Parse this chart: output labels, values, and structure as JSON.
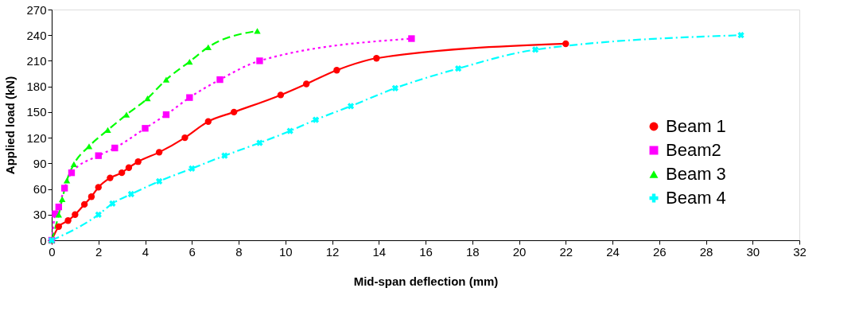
{
  "chart_data": {
    "type": "line",
    "xlabel": "Mid-span deflection (mm)",
    "ylabel": "Applied load (kN)",
    "xlim": [
      0,
      32
    ],
    "xticks": [
      0,
      2,
      4,
      6,
      8,
      10,
      12,
      14,
      16,
      18,
      20,
      22,
      24,
      26,
      28,
      30,
      32
    ],
    "ylim": [
      0,
      270
    ],
    "yticks": [
      0,
      30,
      60,
      90,
      120,
      150,
      180,
      210,
      240,
      270
    ],
    "grid": false,
    "legend": "right",
    "series": [
      {
        "name": "Beam 1",
        "color": "#ff0000",
        "marker": "circle",
        "line_style": "solid",
        "x": [
          0,
          0.3,
          0.7,
          1.0,
          1.4,
          1.7,
          2.0,
          2.5,
          3.0,
          3.3,
          3.7,
          4.6,
          5.7,
          6.7,
          7.8,
          9.8,
          10.9,
          12.2,
          13.9,
          22.0
        ],
        "values": [
          0,
          16,
          23,
          30,
          42,
          51,
          62,
          73,
          79,
          85,
          92,
          103,
          120,
          139,
          150,
          170,
          183,
          199,
          213,
          230
        ]
      },
      {
        "name": "Beam2",
        "color": "#ff00ff",
        "marker": "square",
        "line_style": "dotted",
        "x": [
          0,
          0.15,
          0.3,
          0.55,
          0.85,
          2.0,
          2.7,
          4.0,
          4.9,
          5.9,
          7.2,
          8.9,
          15.4
        ],
        "values": [
          0,
          31,
          39,
          61,
          79,
          99,
          108,
          131,
          147,
          167,
          188,
          210,
          236
        ]
      },
      {
        "name": "Beam 3",
        "color": "#00ff00",
        "marker": "triangle",
        "line_style": "dashed",
        "x": [
          0,
          0.3,
          0.45,
          0.65,
          0.95,
          1.6,
          2.4,
          3.2,
          4.1,
          4.9,
          5.9,
          6.7,
          8.8
        ],
        "values": [
          0,
          30,
          48,
          70,
          89,
          110,
          129,
          147,
          166,
          188,
          209,
          226,
          245
        ]
      },
      {
        "name": "Beam 4",
        "color": "#00ffff",
        "marker": "cross",
        "line_style": "dashdot",
        "x": [
          0,
          2.0,
          2.6,
          3.4,
          4.6,
          6.0,
          7.4,
          8.9,
          10.2,
          11.3,
          12.8,
          14.7,
          17.4,
          20.7,
          29.5
        ],
        "values": [
          0,
          30,
          43,
          54,
          69,
          84,
          99,
          114,
          128,
          141,
          157,
          178,
          201,
          223,
          240
        ]
      }
    ]
  }
}
